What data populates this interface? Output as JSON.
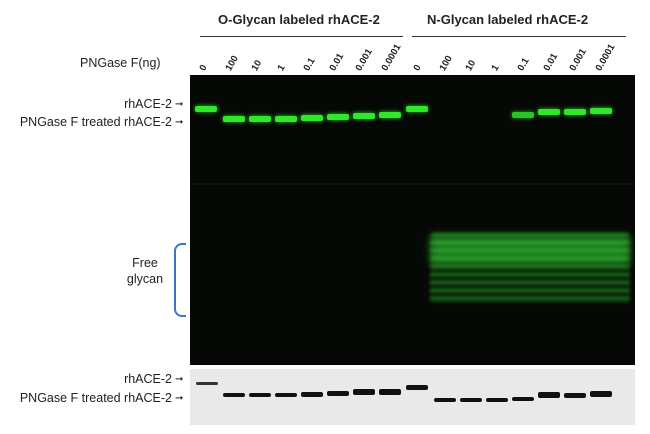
{
  "groups": {
    "o_glycan": "O-Glycan labeled rhACE-2",
    "n_glycan": "N-Glycan labeled rhACE-2"
  },
  "pngase_label": "PNGase F(ng)",
  "lanes_o": [
    "0",
    "100",
    "10",
    "1",
    "0.1",
    "0.01",
    "0.001",
    "0.0001"
  ],
  "lanes_n": [
    "0",
    "100",
    "10",
    "1",
    "0.1",
    "0.01",
    "0.001",
    "0.0001"
  ],
  "side_labels": {
    "rhace2": "rhACE-2",
    "treated": "PNGase F treated rhACE-2",
    "free_glycan_1": "Free",
    "free_glycan_2": "glycan",
    "rhace2_bottom": "rhACE-2",
    "treated_bottom": "PNGase F treated rhACE-2"
  },
  "colors": {
    "band_green": "#2ee82a",
    "brace_blue": "#3a75c4"
  }
}
